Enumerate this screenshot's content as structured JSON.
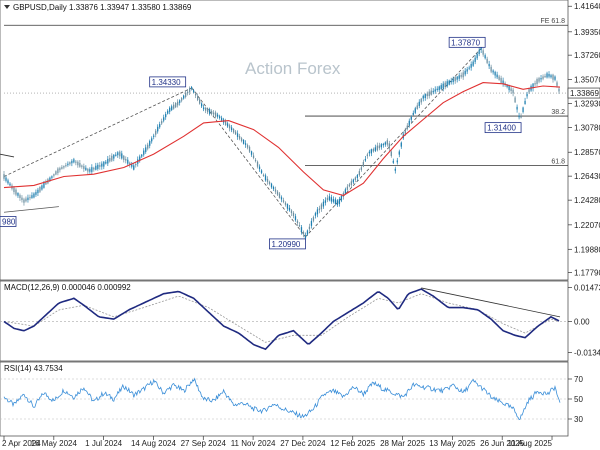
{
  "header": {
    "price": "GBPUSD,Daily  1.33876 1.33947 1.33580 1.33869",
    "macd": "MACD(12,26,9) 0.000046 0.000992",
    "rsi": "RSI(14) 43.7534"
  },
  "watermark": "Action Forex",
  "colors": {
    "up": "#1e7fb0",
    "down": "#6c8fa0",
    "ma": "#e03131",
    "macd": "#1f2a80",
    "signal": "#999999",
    "rsi": "#3a8ed8",
    "level": "#333333",
    "trend": "#555555"
  },
  "chart_data": [
    {
      "type": "candlestick",
      "name": "price",
      "x_ticks": [
        "2 Apr 2024",
        "16 May 2024",
        "1 Jul 2024",
        "14 Aug 2024",
        "27 Sep 2024",
        "11 Nov 2024",
        "27 Dec 2024",
        "12 Feb 2025",
        "28 Mar 2025",
        "13 May 2025",
        "26 Jun 2025",
        "11 Aug 2025"
      ],
      "y_ticks": [
        "1.41640",
        "1.39350",
        "1.37260",
        "1.35070",
        "1.32930",
        "1.30780",
        "1.28570",
        "1.26430",
        "1.24280",
        "1.22070",
        "1.19880",
        "1.17790"
      ],
      "ylim": [
        1.1749,
        1.4184
      ],
      "current_price": "1.33869",
      "pivot_path": [
        [
          0,
          1.264
        ],
        [
          10,
          1.252
        ],
        [
          20,
          1.242
        ],
        [
          30,
          1.247
        ],
        [
          40,
          1.256
        ],
        [
          55,
          1.27
        ],
        [
          70,
          1.278
        ],
        [
          85,
          1.269
        ],
        [
          100,
          1.275
        ],
        [
          115,
          1.285
        ],
        [
          130,
          1.272
        ],
        [
          145,
          1.292
        ],
        [
          155,
          1.308
        ],
        [
          165,
          1.323
        ],
        [
          175,
          1.33
        ],
        [
          188,
          1.3433
        ],
        [
          200,
          1.325
        ],
        [
          215,
          1.318
        ],
        [
          230,
          1.305
        ],
        [
          245,
          1.29
        ],
        [
          260,
          1.265
        ],
        [
          275,
          1.248
        ],
        [
          290,
          1.23
        ],
        [
          302,
          1.2099
        ],
        [
          312,
          1.23
        ],
        [
          325,
          1.245
        ],
        [
          335,
          1.24
        ],
        [
          345,
          1.255
        ],
        [
          355,
          1.265
        ],
        [
          365,
          1.285
        ],
        [
          375,
          1.29
        ],
        [
          385,
          1.295
        ],
        [
          392,
          1.27
        ],
        [
          400,
          1.3
        ],
        [
          410,
          1.32
        ],
        [
          420,
          1.335
        ],
        [
          430,
          1.34
        ],
        [
          440,
          1.345
        ],
        [
          450,
          1.35
        ],
        [
          460,
          1.355
        ],
        [
          470,
          1.365
        ],
        [
          478,
          1.3787
        ],
        [
          488,
          1.36
        ],
        [
          498,
          1.35
        ],
        [
          510,
          1.34
        ],
        [
          517,
          1.314
        ],
        [
          525,
          1.34
        ],
        [
          535,
          1.35
        ],
        [
          545,
          1.355
        ],
        [
          552,
          1.352
        ],
        [
          557,
          1.3387
        ]
      ],
      "moving_average": [
        [
          0,
          1.254
        ],
        [
          30,
          1.256
        ],
        [
          60,
          1.264
        ],
        [
          90,
          1.266
        ],
        [
          120,
          1.272
        ],
        [
          150,
          1.284
        ],
        [
          180,
          1.3
        ],
        [
          200,
          1.312
        ],
        [
          225,
          1.314
        ],
        [
          250,
          1.306
        ],
        [
          275,
          1.29
        ],
        [
          300,
          1.268
        ],
        [
          320,
          1.252
        ],
        [
          340,
          1.247
        ],
        [
          360,
          1.258
        ],
        [
          380,
          1.28
        ],
        [
          400,
          1.3
        ],
        [
          420,
          1.315
        ],
        [
          440,
          1.33
        ],
        [
          460,
          1.34
        ],
        [
          480,
          1.348
        ],
        [
          500,
          1.347
        ],
        [
          520,
          1.342
        ],
        [
          540,
          1.345
        ],
        [
          557,
          1.344
        ]
      ],
      "box_labels": [
        {
          "text": "1.34330",
          "x": 188,
          "y": 1.3433,
          "anchor": "left"
        },
        {
          "text": "1.37870",
          "x": 478,
          "y": 1.3787,
          "anchor": "left"
        },
        {
          "text": "1.31400",
          "x": 517,
          "y": 1.314,
          "anchor": "left"
        },
        {
          "text": "1.20990",
          "x": 302,
          "y": 1.2099,
          "anchor": "left"
        },
        {
          "text": "980",
          "x": 0,
          "y": 1.23,
          "anchor": "edge"
        }
      ],
      "levels": [
        {
          "label": "FE 61.8",
          "value": 1.3994
        },
        {
          "label": "38.2",
          "value": 1.3181
        },
        {
          "label": "61.8",
          "value": 1.2738
        }
      ],
      "trendlines": [
        {
          "from": [
            0,
            1.264
          ],
          "to": [
            188,
            1.3433
          ],
          "style": "dashed"
        },
        {
          "from": [
            188,
            1.3433
          ],
          "to": [
            302,
            1.2099
          ],
          "style": "dashed"
        },
        {
          "from": [
            302,
            1.2099
          ],
          "to": [
            478,
            1.3787
          ],
          "style": "dashed"
        },
        {
          "from": [
            0,
            1.232
          ],
          "to": [
            55,
            1.237
          ],
          "style": "solid"
        }
      ]
    },
    {
      "type": "line",
      "name": "MACD",
      "y_ticks": [
        "0.014734",
        "0.00",
        "-0.013442"
      ],
      "ylim": [
        -0.0158,
        0.0162
      ],
      "macd_path": [
        [
          0,
          0.0
        ],
        [
          10,
          -0.003
        ],
        [
          20,
          -0.004
        ],
        [
          30,
          -0.002
        ],
        [
          45,
          0.004
        ],
        [
          55,
          0.008
        ],
        [
          70,
          0.01
        ],
        [
          80,
          0.007
        ],
        [
          95,
          0.002
        ],
        [
          110,
          0.001
        ],
        [
          125,
          0.005
        ],
        [
          140,
          0.008
        ],
        [
          160,
          0.012
        ],
        [
          175,
          0.013
        ],
        [
          190,
          0.01
        ],
        [
          205,
          0.004
        ],
        [
          220,
          -0.002
        ],
        [
          235,
          -0.005
        ],
        [
          250,
          -0.01
        ],
        [
          262,
          -0.012
        ],
        [
          275,
          -0.006
        ],
        [
          290,
          -0.004
        ],
        [
          305,
          -0.01
        ],
        [
          318,
          -0.005
        ],
        [
          330,
          0.0
        ],
        [
          345,
          0.004
        ],
        [
          360,
          0.008
        ],
        [
          375,
          0.013
        ],
        [
          385,
          0.01
        ],
        [
          395,
          0.005
        ],
        [
          405,
          0.012
        ],
        [
          418,
          0.014
        ],
        [
          430,
          0.011
        ],
        [
          445,
          0.006
        ],
        [
          460,
          0.006
        ],
        [
          475,
          0.005
        ],
        [
          488,
          0.001
        ],
        [
          500,
          -0.004
        ],
        [
          512,
          -0.006
        ],
        [
          522,
          -0.007
        ],
        [
          535,
          -0.002
        ],
        [
          548,
          0.002
        ],
        [
          557,
          0.0
        ]
      ],
      "signal_path": [
        [
          0,
          0.0
        ],
        [
          30,
          -0.002
        ],
        [
          55,
          0.005
        ],
        [
          80,
          0.007
        ],
        [
          110,
          0.002
        ],
        [
          140,
          0.006
        ],
        [
          175,
          0.011
        ],
        [
          205,
          0.006
        ],
        [
          235,
          -0.002
        ],
        [
          262,
          -0.009
        ],
        [
          290,
          -0.006
        ],
        [
          318,
          -0.006
        ],
        [
          345,
          0.002
        ],
        [
          375,
          0.01
        ],
        [
          395,
          0.008
        ],
        [
          418,
          0.012
        ],
        [
          445,
          0.008
        ],
        [
          475,
          0.005
        ],
        [
          500,
          -0.001
        ],
        [
          522,
          -0.005
        ],
        [
          548,
          0.001
        ],
        [
          557,
          0.0
        ]
      ],
      "trendline": {
        "from": [
          418,
          0.0145
        ],
        "to": [
          557,
          0.002
        ]
      }
    },
    {
      "type": "line",
      "name": "RSI",
      "y_ticks": [
        "70",
        "50",
        "30"
      ],
      "ylim": [
        15,
        85
      ],
      "rsi_path": [
        [
          0,
          52
        ],
        [
          10,
          44
        ],
        [
          20,
          55
        ],
        [
          30,
          42
        ],
        [
          40,
          56
        ],
        [
          50,
          48
        ],
        [
          60,
          59
        ],
        [
          70,
          52
        ],
        [
          80,
          62
        ],
        [
          90,
          47
        ],
        [
          100,
          56
        ],
        [
          110,
          50
        ],
        [
          120,
          63
        ],
        [
          130,
          54
        ],
        [
          140,
          60
        ],
        [
          150,
          68
        ],
        [
          160,
          56
        ],
        [
          170,
          64
        ],
        [
          180,
          58
        ],
        [
          190,
          70
        ],
        [
          200,
          50
        ],
        [
          210,
          48
        ],
        [
          220,
          58
        ],
        [
          230,
          44
        ],
        [
          240,
          46
        ],
        [
          250,
          40
        ],
        [
          260,
          38
        ],
        [
          270,
          45
        ],
        [
          280,
          40
        ],
        [
          290,
          36
        ],
        [
          300,
          32
        ],
        [
          310,
          40
        ],
        [
          320,
          54
        ],
        [
          330,
          58
        ],
        [
          340,
          52
        ],
        [
          350,
          62
        ],
        [
          360,
          55
        ],
        [
          370,
          66
        ],
        [
          380,
          60
        ],
        [
          390,
          56
        ],
        [
          400,
          52
        ],
        [
          410,
          64
        ],
        [
          420,
          62
        ],
        [
          430,
          60
        ],
        [
          440,
          58
        ],
        [
          450,
          64
        ],
        [
          460,
          56
        ],
        [
          470,
          68
        ],
        [
          480,
          60
        ],
        [
          490,
          50
        ],
        [
          500,
          46
        ],
        [
          510,
          40
        ],
        [
          517,
          30
        ],
        [
          525,
          48
        ],
        [
          535,
          58
        ],
        [
          545,
          55
        ],
        [
          552,
          62
        ],
        [
          557,
          44
        ]
      ]
    }
  ]
}
